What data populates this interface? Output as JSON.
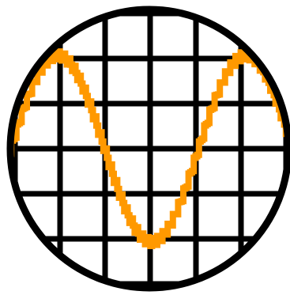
{
  "icon": {
    "name": "oscilloscope-waveform-icon",
    "grid_divisions": 6,
    "colors": {
      "outline": "#000000",
      "grid": "#000000",
      "waveform": "#ff9900",
      "background": "#ffffff"
    }
  }
}
